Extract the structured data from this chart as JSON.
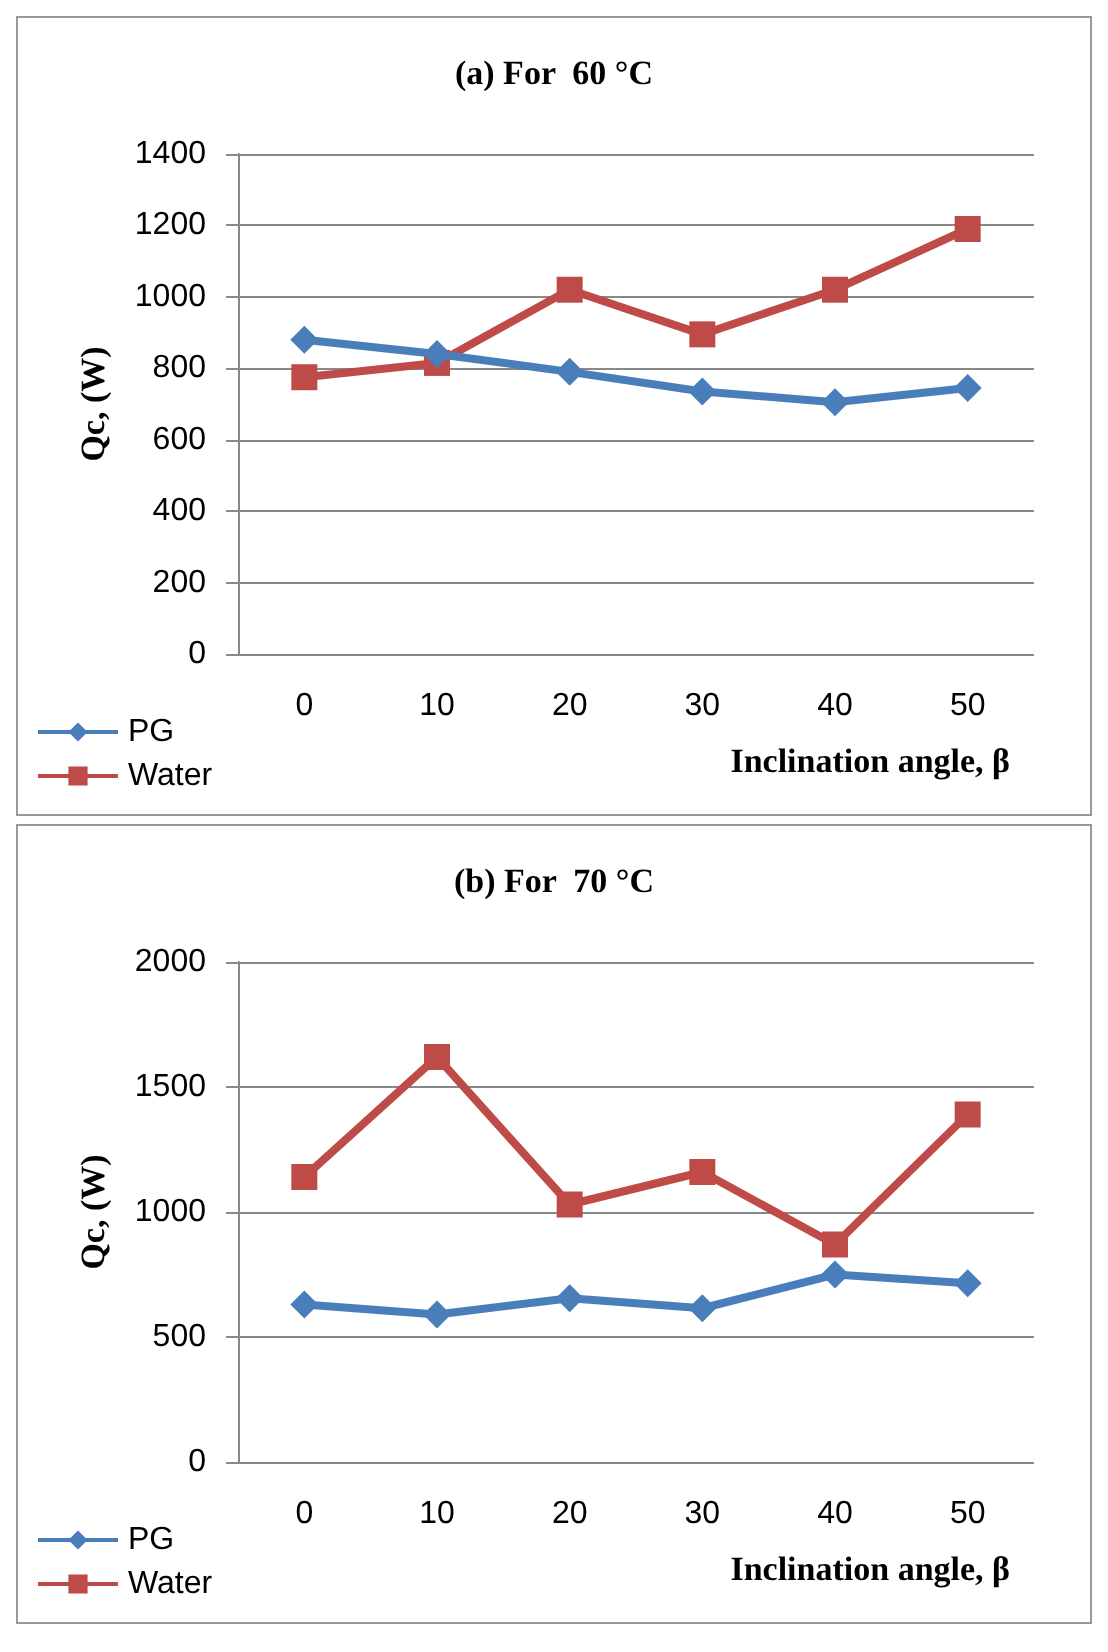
{
  "chart_data": [
    {
      "type": "line",
      "title": "(a) For  60 °C",
      "xlabel": "Inclination angle, β",
      "ylabel": "Qc, (W)",
      "categories": [
        "0",
        "10",
        "20",
        "30",
        "40",
        "50"
      ],
      "ylim": [
        0,
        1400
      ],
      "yticks": [
        0,
        200,
        400,
        600,
        800,
        1000,
        1200,
        1400
      ],
      "grid": "y",
      "legend": "bottom left",
      "series": [
        {
          "name": "PG",
          "color": "#4a7ebb",
          "marker": "diamond",
          "values": [
            880,
            840,
            790,
            735,
            705,
            745
          ]
        },
        {
          "name": "Water",
          "color": "#be4b48",
          "marker": "square",
          "values": [
            775,
            815,
            1020,
            895,
            1020,
            1190
          ]
        }
      ]
    },
    {
      "type": "line",
      "title": "(b) For  70 °C",
      "xlabel": "Inclination angle, β",
      "ylabel": "Qc, (W)",
      "categories": [
        "0",
        "10",
        "20",
        "30",
        "40",
        "50"
      ],
      "ylim": [
        0,
        2000
      ],
      "yticks": [
        0,
        500,
        1000,
        1500,
        2000
      ],
      "grid": "y",
      "legend": "bottom left",
      "series": [
        {
          "name": "PG",
          "color": "#4a7ebb",
          "marker": "diamond",
          "values": [
            630,
            590,
            655,
            615,
            750,
            715
          ]
        },
        {
          "name": "Water",
          "color": "#be4b48",
          "marker": "square",
          "values": [
            1140,
            1620,
            1030,
            1160,
            870,
            1390
          ]
        }
      ]
    }
  ]
}
